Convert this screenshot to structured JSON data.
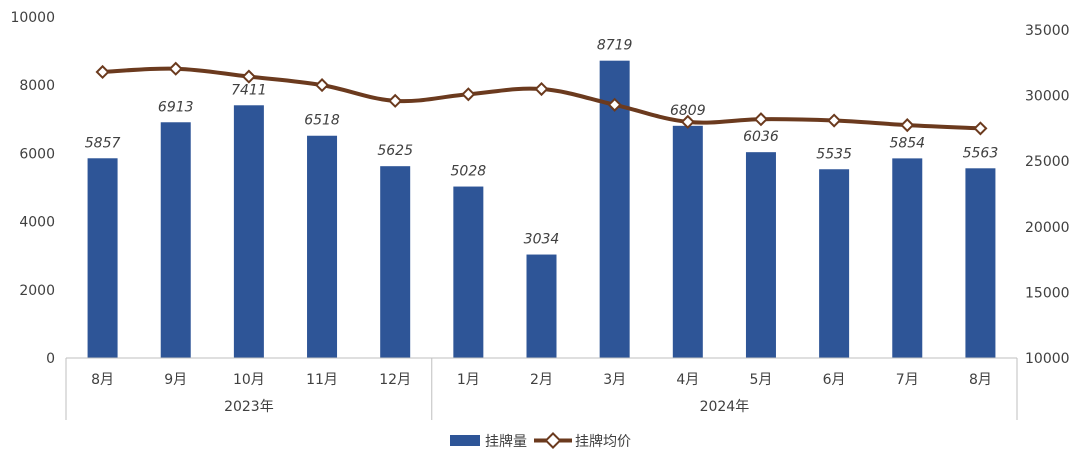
{
  "chart_data": {
    "type": "bar",
    "categories": [
      "8月",
      "9月",
      "10月",
      "11月",
      "12月",
      "1月",
      "2月",
      "3月",
      "4月",
      "5月",
      "6月",
      "7月",
      "8月"
    ],
    "groups": [
      {
        "label": "2023年",
        "count": 5
      },
      {
        "label": "2024年",
        "count": 8
      }
    ],
    "series": [
      {
        "name": "挂牌量",
        "type": "bar",
        "axis": "left",
        "color": "#2E5597",
        "values": [
          5857,
          6913,
          7411,
          6518,
          5625,
          5028,
          3034,
          8719,
          6809,
          6036,
          5535,
          5854,
          5563
        ],
        "labels": [
          "5857",
          "6913",
          "7411",
          "6518",
          "5625",
          "5028",
          "3034",
          "8719",
          "6809",
          "6036",
          "5535",
          "5854",
          "5563"
        ]
      },
      {
        "name": "挂牌均价",
        "type": "line",
        "axis": "right",
        "color": "#6B3A1E",
        "values": [
          31800,
          32050,
          31450,
          30800,
          29600,
          30100,
          30500,
          29300,
          28000,
          28200,
          28100,
          27750,
          27500
        ]
      }
    ],
    "y_left": {
      "min": 0,
      "max": 10000,
      "ticks": [
        "0",
        "2000",
        "4000",
        "6000",
        "8000",
        "10000"
      ]
    },
    "y_right": {
      "min": 10000,
      "max": 35000,
      "ticks": [
        "10000",
        "15000",
        "20000",
        "25000",
        "30000",
        "35000"
      ]
    },
    "legend_position": "bottom",
    "grid": false
  }
}
